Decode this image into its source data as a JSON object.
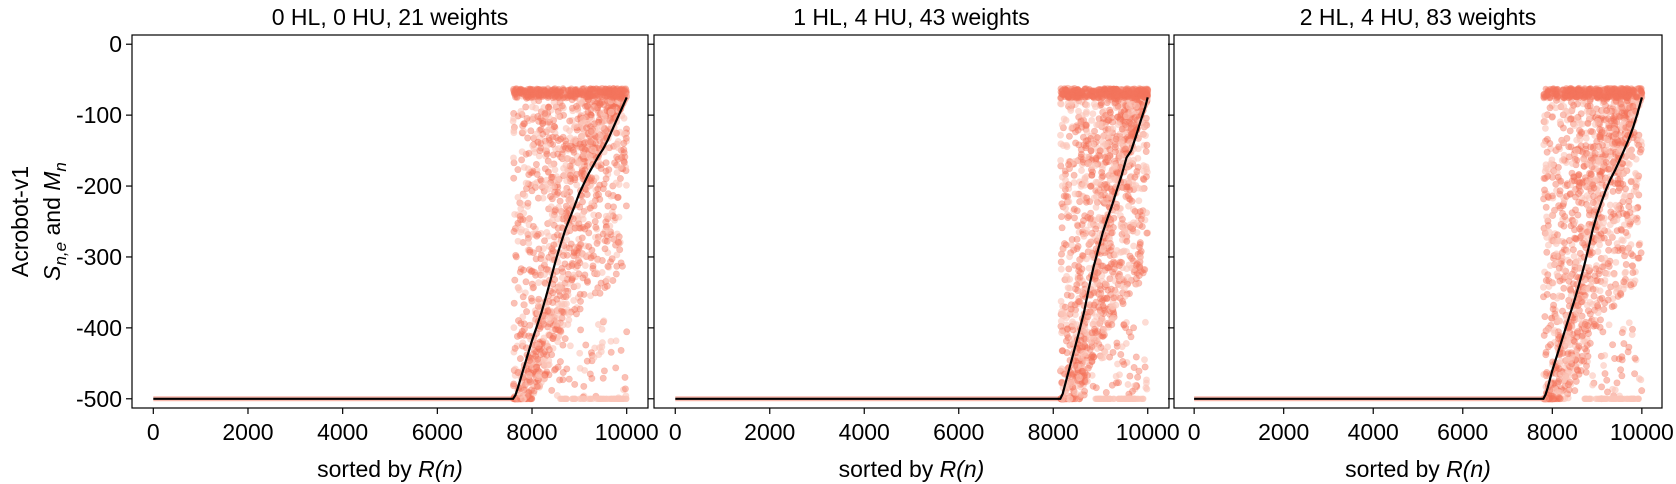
{
  "chart_data": [
    {
      "type": "scatter",
      "title": "0 HL, 0 HU, 21 weights",
      "xlabel": "sorted by R(n)",
      "ylabel_line1": "Acrobot-v1",
      "ylabel_line2": "S_{n,e} and M_n",
      "xlim": [
        0,
        10000
      ],
      "ylim": [
        -500,
        0
      ],
      "xticks": [
        0,
        2000,
        4000,
        6000,
        8000,
        10000
      ],
      "yticks": [
        0,
        -100,
        -200,
        -300,
        -400,
        -500
      ],
      "grid": false,
      "transition_x": 7600,
      "series": [
        {
          "kind": "mean_line",
          "x": [
            0,
            7600,
            7650,
            7700,
            7800,
            7900,
            8000,
            8100,
            8200,
            8300,
            8400,
            8500,
            8600,
            8700,
            8800,
            8900,
            9000,
            9100,
            9200,
            9300,
            9400,
            9500,
            9600,
            9700,
            9800,
            9900,
            10000
          ],
          "y": [
            -500,
            -500,
            -495,
            -485,
            -462,
            -440,
            -418,
            -398,
            -378,
            -355,
            -330,
            -305,
            -283,
            -262,
            -245,
            -228,
            -210,
            -196,
            -182,
            -170,
            -158,
            -148,
            -135,
            -120,
            -105,
            -90,
            -75
          ]
        },
        {
          "kind": "scatter_samples",
          "x_start": 7600,
          "x_end": 10000,
          "y_min": -500,
          "y_max": -62
        }
      ]
    },
    {
      "type": "scatter",
      "title": "1 HL, 4 HU, 43 weights",
      "xlabel": "sorted by R(n)",
      "xlim": [
        0,
        10000
      ],
      "ylim": [
        -500,
        0
      ],
      "xticks": [
        0,
        2000,
        4000,
        6000,
        8000,
        10000
      ],
      "yticks": [
        0,
        -100,
        -200,
        -300,
        -400,
        -500
      ],
      "grid": false,
      "transition_x": 8150,
      "series": [
        {
          "kind": "mean_line",
          "x": [
            0,
            8150,
            8200,
            8250,
            8350,
            8450,
            8550,
            8650,
            8750,
            8850,
            8950,
            9050,
            9150,
            9250,
            9350,
            9450,
            9550,
            9650,
            9750,
            9850,
            9950,
            10000
          ],
          "y": [
            -500,
            -500,
            -493,
            -480,
            -455,
            -430,
            -405,
            -378,
            -345,
            -315,
            -290,
            -265,
            -245,
            -226,
            -205,
            -184,
            -160,
            -150,
            -130,
            -108,
            -88,
            -75
          ]
        },
        {
          "kind": "scatter_samples",
          "x_start": 8150,
          "x_end": 10000,
          "y_min": -500,
          "y_max": -62
        }
      ]
    },
    {
      "type": "scatter",
      "title": "2 HL, 4 HU, 83 weights",
      "xlabel": "sorted by R(n)",
      "xlim": [
        0,
        10000
      ],
      "ylim": [
        -500,
        0
      ],
      "xticks": [
        0,
        2000,
        4000,
        6000,
        8000,
        10000
      ],
      "yticks": [
        0,
        -100,
        -200,
        -300,
        -400,
        -500
      ],
      "grid": false,
      "transition_x": 7800,
      "series": [
        {
          "kind": "mean_line",
          "x": [
            0,
            7800,
            7850,
            7900,
            8000,
            8100,
            8200,
            8300,
            8400,
            8500,
            8600,
            8700,
            8800,
            8900,
            9000,
            9100,
            9200,
            9300,
            9400,
            9500,
            9600,
            9700,
            9800,
            9900,
            10000
          ],
          "y": [
            -500,
            -500,
            -494,
            -484,
            -460,
            -440,
            -420,
            -400,
            -380,
            -360,
            -338,
            -315,
            -290,
            -262,
            -240,
            -222,
            -205,
            -190,
            -178,
            -164,
            -150,
            -135,
            -118,
            -98,
            -75
          ]
        },
        {
          "kind": "scatter_samples",
          "x_start": 7800,
          "x_end": 10000,
          "y_min": -500,
          "y_max": -62
        }
      ]
    }
  ],
  "colors": {
    "scatter": "#f4735b",
    "scatter_light": "#fbc4b8",
    "mean_line": "#000000",
    "axes": "#000000",
    "background": "#ffffff"
  }
}
